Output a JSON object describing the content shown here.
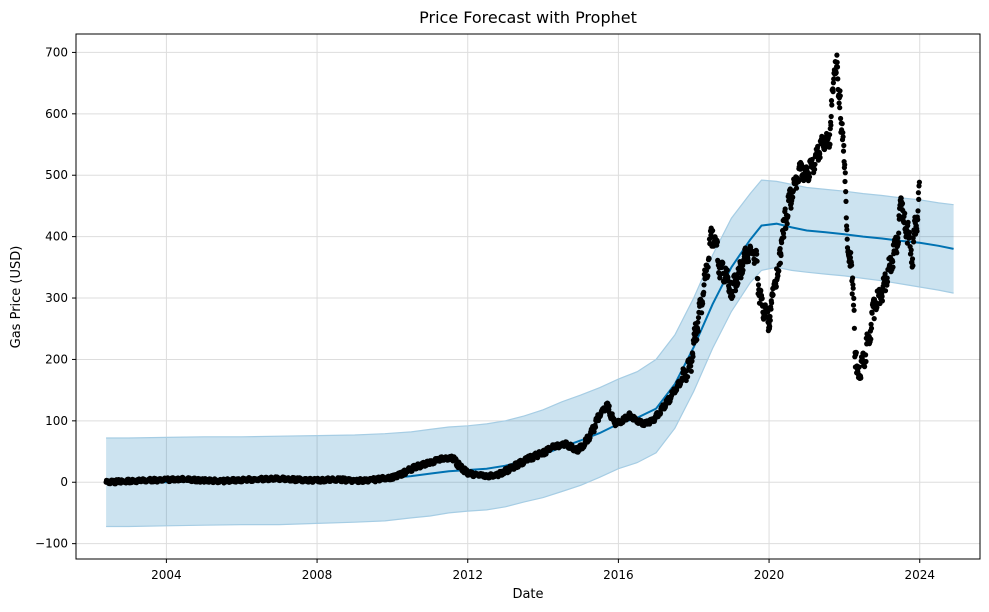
{
  "chart_data": {
    "type": "line",
    "title": "Price Forecast with Prophet",
    "xlabel": "Date",
    "ylabel": "Gas Price (USD)",
    "x_range": [
      2001.6,
      2025.6
    ],
    "ylim": [
      -125,
      730
    ],
    "x_ticks": [
      2004,
      2008,
      2012,
      2016,
      2020,
      2024
    ],
    "x_tick_labels": [
      "2004",
      "2008",
      "2012",
      "2016",
      "2020",
      "2024"
    ],
    "y_ticks": [
      -100,
      0,
      100,
      200,
      300,
      400,
      500,
      600,
      700
    ],
    "y_tick_labels": [
      "−100",
      "0",
      "100",
      "200",
      "300",
      "400",
      "500",
      "600",
      "700"
    ],
    "grid": true,
    "colors": {
      "forecast": "#0072B2",
      "band_fill": "#0072B2",
      "band_edge": "#A6CDE4",
      "observed": "#000000",
      "grid": "#dddddd"
    },
    "forecast": {
      "x": [
        2002.4,
        2003.0,
        2004.0,
        2005.0,
        2006.0,
        2007.0,
        2008.0,
        2009.0,
        2009.8,
        2010.5,
        2011.0,
        2011.5,
        2012.0,
        2012.5,
        2013.0,
        2013.5,
        2014.0,
        2014.5,
        2015.0,
        2015.5,
        2016.0,
        2016.5,
        2017.0,
        2017.5,
        2018.0,
        2018.5,
        2019.0,
        2019.5,
        2019.8,
        2020.2,
        2020.6,
        2021.0,
        2021.5,
        2022.0,
        2022.5,
        2023.0,
        2023.5,
        2024.0,
        2024.5,
        2024.9
      ],
      "yhat": [
        0,
        0,
        0,
        2,
        3,
        3,
        4,
        5,
        6,
        10,
        14,
        18,
        20,
        22,
        27,
        35,
        45,
        57,
        68,
        80,
        95,
        105,
        120,
        160,
        220,
        290,
        350,
        395,
        418,
        421,
        415,
        410,
        407,
        404,
        400,
        397,
        393,
        390,
        385,
        380
      ],
      "upper": [
        72,
        72,
        73,
        74,
        74,
        75,
        76,
        77,
        79,
        82,
        86,
        90,
        92,
        95,
        100,
        108,
        118,
        131,
        142,
        154,
        168,
        180,
        200,
        240,
        300,
        370,
        430,
        470,
        492,
        490,
        485,
        480,
        477,
        474,
        470,
        467,
        463,
        460,
        455,
        452
      ],
      "lower": [
        -72,
        -72,
        -71,
        -70,
        -69,
        -69,
        -67,
        -65,
        -63,
        -58,
        -55,
        -50,
        -47,
        -45,
        -40,
        -32,
        -25,
        -15,
        -5,
        8,
        22,
        32,
        48,
        88,
        148,
        218,
        278,
        325,
        345,
        350,
        345,
        342,
        339,
        336,
        332,
        328,
        323,
        318,
        313,
        308
      ]
    },
    "observed": {
      "x": [
        2002.4,
        2003.0,
        2003.5,
        2004.0,
        2004.5,
        2005.0,
        2005.5,
        2006.0,
        2006.5,
        2007.0,
        2007.5,
        2008.0,
        2008.5,
        2009.0,
        2009.5,
        2010.0,
        2010.3,
        2010.6,
        2011.0,
        2011.3,
        2011.6,
        2011.8,
        2012.0,
        2012.2,
        2012.5,
        2012.8,
        2013.0,
        2013.3,
        2013.6,
        2014.0,
        2014.3,
        2014.6,
        2014.9,
        2015.1,
        2015.3,
        2015.5,
        2015.7,
        2015.9,
        2016.1,
        2016.3,
        2016.5,
        2016.7,
        2016.9,
        2017.1,
        2017.3,
        2017.5,
        2017.7,
        2017.9,
        2018.1,
        2018.3,
        2018.5,
        2018.7,
        2018.9,
        2019.0,
        2019.2,
        2019.4,
        2019.6,
        2019.8,
        2020.0,
        2020.1,
        2020.2,
        2020.3,
        2020.4,
        2020.6,
        2020.8,
        2021.0,
        2021.2,
        2021.4,
        2021.6,
        2021.7,
        2021.8,
        2021.9,
        2022.0,
        2022.1,
        2022.2,
        2022.3,
        2022.4,
        2022.6,
        2022.8,
        2023.0,
        2023.2,
        2023.4,
        2023.5,
        2023.6,
        2023.8,
        2024.0
      ],
      "y": [
        0,
        2,
        3,
        4,
        5,
        3,
        2,
        4,
        5,
        6,
        4,
        3,
        5,
        2,
        4,
        8,
        15,
        25,
        32,
        38,
        40,
        25,
        15,
        12,
        10,
        12,
        18,
        28,
        38,
        48,
        58,
        62,
        52,
        62,
        82,
        110,
        125,
        95,
        100,
        110,
        100,
        95,
        100,
        115,
        130,
        150,
        170,
        190,
        260,
        330,
        410,
        350,
        330,
        310,
        340,
        370,
        380,
        290,
        260,
        300,
        340,
        370,
        420,
        470,
        510,
        500,
        520,
        550,
        560,
        640,
        690,
        600,
        510,
        380,
        350,
        200,
        175,
        220,
        290,
        310,
        350,
        390,
        450,
        430,
        370,
        470
      ]
    }
  }
}
